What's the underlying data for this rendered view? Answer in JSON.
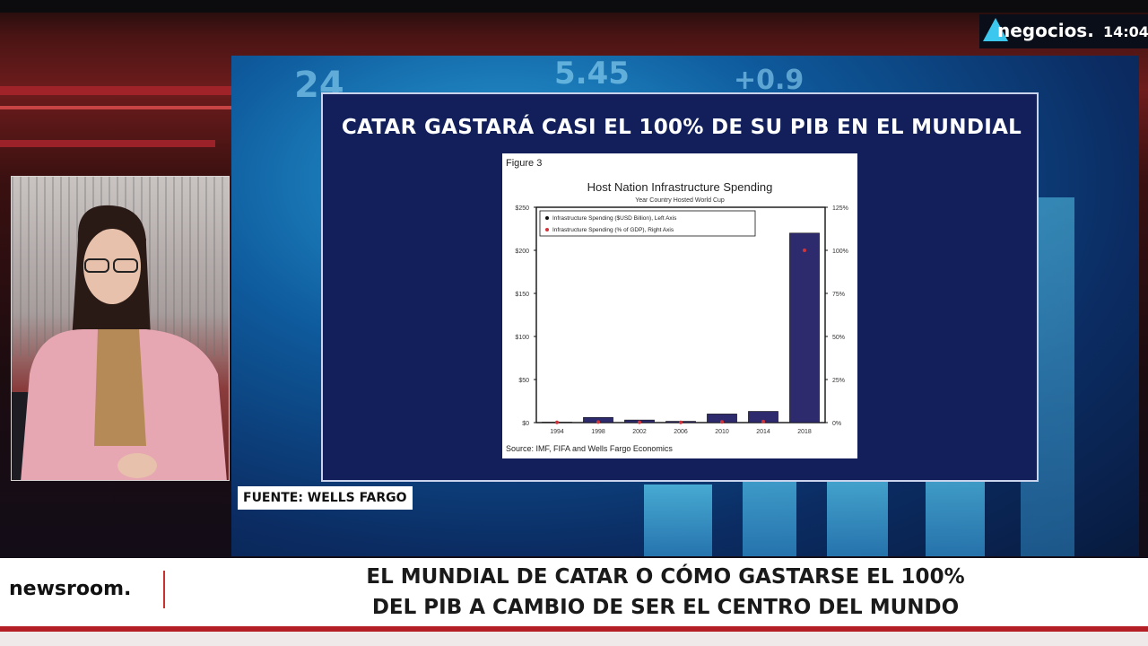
{
  "channel": {
    "name": "negocios.",
    "time": "14:04"
  },
  "slide": {
    "title": "CATAR GASTARÁ CASI EL 100% DE SU PIB EN EL MUNDIAL"
  },
  "caption": {
    "source": "FUENTE: WELLS FARGO"
  },
  "lower_third": {
    "brand": "newsroom.",
    "headline_line1": "EL MUNDIAL DE CATAR O CÓMO GASTARSE EL 100%",
    "headline_line2": "DEL PIB A CAMBIO DE SER EL CENTRO DEL MUNDO"
  },
  "chart_data": {
    "type": "bar",
    "figure_label": "Figure 3",
    "title": "Host Nation Infrastructure Spending",
    "subtitle": "Year Country Hosted World Cup",
    "categories": [
      "1994",
      "1998",
      "2002",
      "2006",
      "2010",
      "2014",
      "2018"
    ],
    "series": [
      {
        "name": "Infrastructure Spending ($USD Billion), Left Axis",
        "axis": "left",
        "kind": "bar",
        "values": [
          0.5,
          6,
          3,
          1.5,
          10,
          13,
          220
        ]
      },
      {
        "name": "Infrastructure Spending (% of GDP), Right Axis",
        "axis": "right",
        "kind": "point",
        "values": [
          0.1,
          0.3,
          0.2,
          0.1,
          0.4,
          0.6,
          100
        ]
      }
    ],
    "left_axis": {
      "ticks": [
        "$0",
        "$50",
        "$100",
        "$150",
        "$200",
        "$250"
      ],
      "ylim": [
        0,
        250
      ]
    },
    "right_axis": {
      "ticks": [
        "0%",
        "25%",
        "50%",
        "75%",
        "100%",
        "125%"
      ],
      "ylim": [
        0,
        125
      ]
    },
    "source": "Source: IMF, FIFA and Wells Fargo Economics",
    "legend_position": "top-left",
    "colors": {
      "bar": "#2e2a6e",
      "point": "#d0343b"
    }
  }
}
